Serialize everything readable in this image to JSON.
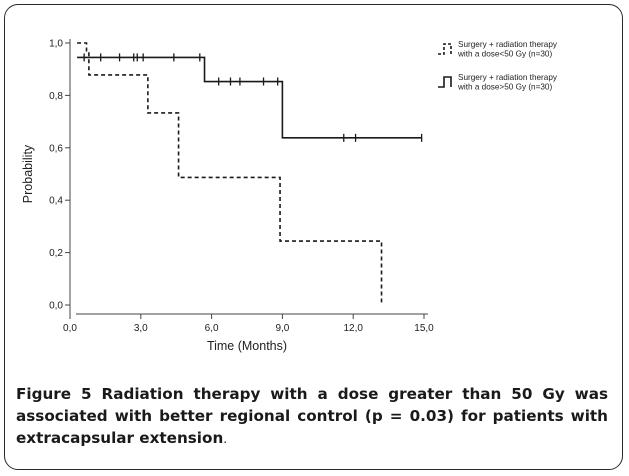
{
  "chart_data": {
    "type": "line",
    "subtype": "kaplan-meier step",
    "xlabel": "Time (Months)",
    "ylabel": "Probability",
    "xlim": [
      0,
      15
    ],
    "ylim": [
      0,
      1
    ],
    "xticks": [
      "0,0",
      "3,0",
      "6,0",
      "9,0",
      "12,0",
      "15,0"
    ],
    "yticks": [
      "0,0",
      "0,2",
      "0,4",
      "0,6",
      "0,8",
      "1,0"
    ],
    "legend_placement": "top-right, outside plot",
    "series": [
      {
        "name": "Surgery + radiation therapy with a dose<50 Gy (n=30)",
        "legend_lines": [
          "Surgery + radiation therapy",
          "with a dose<50 Gy (n=30)"
        ],
        "style": "dashed",
        "steps": [
          {
            "t": 0.3,
            "s": 1.0
          },
          {
            "t": 0.7,
            "s": 0.967
          },
          {
            "t": 0.8,
            "s": 0.878
          },
          {
            "t": 3.3,
            "s": 0.733
          },
          {
            "t": 4.6,
            "s": 0.487
          },
          {
            "t": 8.9,
            "s": 0.244
          },
          {
            "t": 13.2,
            "s": 0.01
          }
        ],
        "end_time": 13.2,
        "censored": []
      },
      {
        "name": "Surgery + radiation therapy with a dose>50 Gy (n=30)",
        "legend_lines": [
          "Surgery + radiation therapy",
          "with a dose>50 Gy (n=30)"
        ],
        "style": "solid",
        "steps": [
          {
            "t": 0.3,
            "s": 0.945
          },
          {
            "t": 5.7,
            "s": 0.853
          },
          {
            "t": 9.0,
            "s": 0.638
          }
        ],
        "end_time": 14.9,
        "censored": [
          0.6,
          1.3,
          2.1,
          2.7,
          2.85,
          3.1,
          4.4,
          5.5,
          6.3,
          6.8,
          7.2,
          8.2,
          8.8,
          11.6,
          12.1,
          14.9
        ]
      }
    ]
  },
  "caption": {
    "figure_number": "Figure 5",
    "text": "Radiation therapy with a dose greater than 50 Gy was associated with better regional control (p = 0.03) for patients with extracapsular extension",
    "end_mark": "."
  },
  "colors": {
    "line": "#1a1a1a",
    "frame": "#2a2a2a",
    "background": "#ffffff"
  }
}
